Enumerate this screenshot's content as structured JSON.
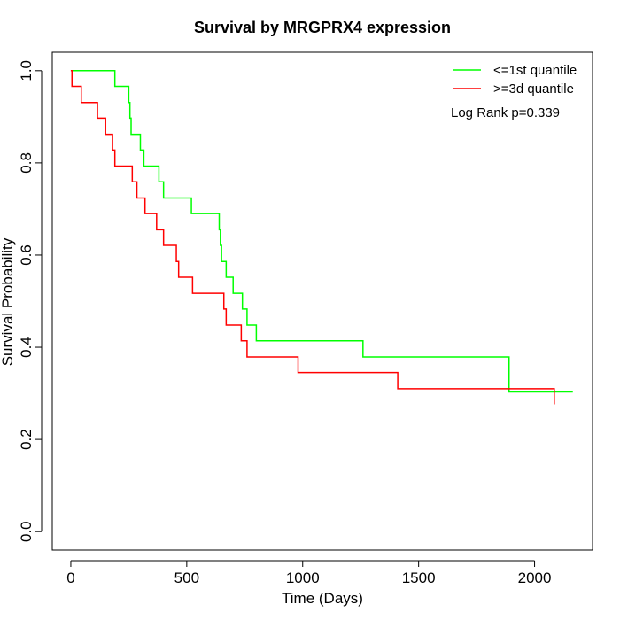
{
  "chart_data": {
    "type": "line",
    "title": "Survival by MRGPRX4 expression",
    "xlabel": "Time (Days)",
    "ylabel": "Survival Probability",
    "xlim": [
      -80,
      2250
    ],
    "ylim": [
      -0.04,
      1.04
    ],
    "x_ticks": [
      0,
      500,
      1000,
      1500,
      2000
    ],
    "y_ticks": [
      0.0,
      0.2,
      0.4,
      0.6,
      0.8,
      1.0
    ],
    "x_tick_labels": [
      "0",
      "500",
      "1000",
      "1500",
      "2000"
    ],
    "y_tick_labels": [
      "0.0",
      "0.2",
      "0.4",
      "0.6",
      "0.8",
      "1.0"
    ],
    "grid": false,
    "legend_position": "top-right",
    "annotation": "Log Rank p=0.339",
    "series": [
      {
        "name": "<=1st quantile",
        "color": "#00ff00",
        "step": true,
        "x": [
          0,
          190,
          250,
          255,
          260,
          300,
          315,
          380,
          400,
          520,
          640,
          645,
          650,
          670,
          700,
          740,
          760,
          800,
          825,
          1260,
          1890,
          2165
        ],
        "y": [
          1.0,
          0.966,
          0.931,
          0.897,
          0.862,
          0.828,
          0.793,
          0.759,
          0.724,
          0.69,
          0.655,
          0.621,
          0.586,
          0.552,
          0.517,
          0.483,
          0.448,
          0.414,
          0.414,
          0.379,
          0.303,
          0.303
        ]
      },
      {
        "name": ">=3d quantile",
        "color": "#ff0000",
        "step": true,
        "x": [
          0,
          5,
          45,
          115,
          150,
          180,
          190,
          265,
          285,
          320,
          370,
          400,
          455,
          465,
          525,
          660,
          670,
          735,
          760,
          980,
          1410,
          2085
        ],
        "y": [
          1.0,
          0.966,
          0.931,
          0.897,
          0.862,
          0.828,
          0.793,
          0.759,
          0.724,
          0.69,
          0.655,
          0.621,
          0.586,
          0.552,
          0.517,
          0.483,
          0.448,
          0.414,
          0.379,
          0.345,
          0.31,
          0.276
        ]
      }
    ]
  }
}
